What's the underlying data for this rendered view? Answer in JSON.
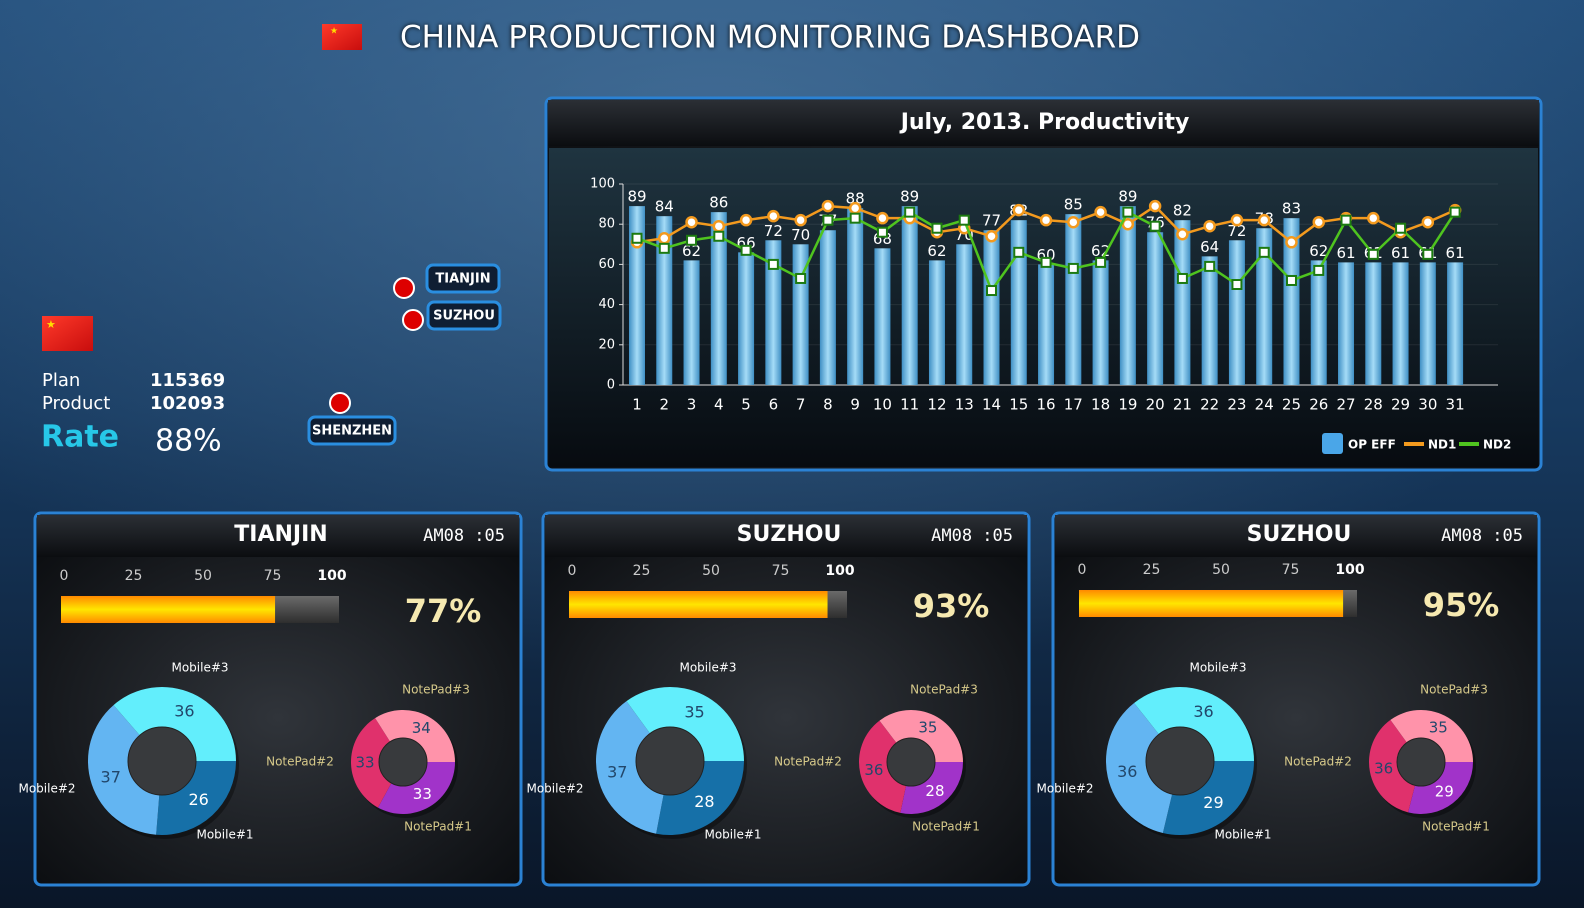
{
  "header": {
    "title": "CHINA PRODUCTION MONITORING DASHBOARD"
  },
  "summary": {
    "plan_label": "Plan",
    "plan": 115369,
    "product_label": "Product",
    "product": 102093,
    "rate_label": "Rate",
    "rate": "88%"
  },
  "map": {
    "cities": [
      "TIANJIN",
      "SUZHOU",
      "SHENZHEN"
    ]
  },
  "panels": [
    {
      "title": "TIANJIN",
      "time": "AM08 :05"
    },
    {
      "title": "SUZHOU",
      "time": "AM08 :05"
    },
    {
      "title": "SUZHOU",
      "time": "AM08 :05"
    }
  ],
  "chart_data": [
    {
      "type": "combo",
      "title": "July, 2013. Productivity",
      "categories": [
        "1",
        "2",
        "3",
        "4",
        "5",
        "6",
        "7",
        "8",
        "9",
        "10",
        "11",
        "12",
        "13",
        "14",
        "15",
        "16",
        "17",
        "18",
        "19",
        "20",
        "21",
        "22",
        "23",
        "24",
        "25",
        "26",
        "27",
        "28",
        "29",
        "30",
        "31"
      ],
      "series": [
        {
          "name": "OP EFF",
          "type": "bar",
          "color": "#6cbde8",
          "values": [
            89,
            84,
            62,
            86,
            66,
            72,
            70,
            77,
            88,
            68,
            89,
            62,
            70,
            77,
            82,
            60,
            85,
            62,
            89,
            76,
            82,
            64,
            72,
            78,
            83,
            62,
            61,
            61,
            61,
            61,
            61
          ]
        },
        {
          "name": "ND1",
          "type": "line",
          "color": "#f39a1e",
          "values": [
            71,
            73,
            81,
            79,
            82,
            84,
            82,
            89,
            88,
            83,
            83,
            76,
            78,
            74,
            87,
            82,
            81,
            86,
            80,
            89,
            75,
            79,
            82,
            82,
            71,
            81,
            83,
            83,
            76,
            81,
            87
          ]
        },
        {
          "name": "ND2",
          "type": "line",
          "color": "#4fc41f",
          "values": [
            73,
            68,
            72,
            74,
            67,
            60,
            53,
            82,
            83,
            76,
            86,
            78,
            82,
            47,
            66,
            61,
            58,
            61,
            86,
            79,
            53,
            59,
            50,
            66,
            52,
            57,
            82,
            65,
            78,
            65,
            86
          ]
        }
      ],
      "ylim": [
        0,
        100
      ],
      "yticks": [
        0,
        20,
        40,
        60,
        80,
        100
      ],
      "grid": true,
      "legend": "bottom-right"
    },
    {
      "type": "gauge",
      "xlim": [
        0,
        100
      ],
      "xticks": [
        0,
        25,
        50,
        75,
        100
      ],
      "values": [
        77
      ],
      "value_labels": [
        "77%"
      ]
    },
    {
      "type": "donut",
      "categories": [
        "Mobile#1",
        "Mobile#2",
        "Mobile#3"
      ],
      "values": [
        26,
        37,
        36
      ],
      "colors": [
        "#1670a8",
        "#63b5f2",
        "#62eefc"
      ]
    },
    {
      "type": "donut",
      "categories": [
        "NotePad#1",
        "NotePad#2",
        "NotePad#3"
      ],
      "values": [
        33,
        33,
        34
      ],
      "colors": [
        "#a133c9",
        "#e0316c",
        "#ff93aa"
      ]
    },
    {
      "type": "gauge",
      "xlim": [
        0,
        100
      ],
      "xticks": [
        0,
        25,
        50,
        75,
        100
      ],
      "values": [
        93
      ],
      "value_labels": [
        "93%"
      ]
    },
    {
      "type": "donut",
      "categories": [
        "Mobile#1",
        "Mobile#2",
        "Mobile#3"
      ],
      "values": [
        28,
        37,
        35
      ],
      "colors": [
        "#1670a8",
        "#63b5f2",
        "#62eefc"
      ]
    },
    {
      "type": "donut",
      "categories": [
        "NotePad#1",
        "NotePad#2",
        "NotePad#3"
      ],
      "values": [
        28,
        36,
        35
      ],
      "colors": [
        "#a133c9",
        "#e0316c",
        "#ff93aa"
      ]
    },
    {
      "type": "gauge",
      "xlim": [
        0,
        100
      ],
      "xticks": [
        0,
        25,
        50,
        75,
        100
      ],
      "values": [
        95
      ],
      "value_labels": [
        "95%"
      ]
    },
    {
      "type": "donut",
      "categories": [
        "Mobile#1",
        "Mobile#2",
        "Mobile#3"
      ],
      "values": [
        29,
        36,
        36
      ],
      "colors": [
        "#1670a8",
        "#63b5f2",
        "#62eefc"
      ]
    },
    {
      "type": "donut",
      "categories": [
        "NotePad#1",
        "NotePad#2",
        "NotePad#3"
      ],
      "values": [
        29,
        36,
        35
      ],
      "colors": [
        "#a133c9",
        "#e0316c",
        "#ff93aa"
      ]
    }
  ]
}
